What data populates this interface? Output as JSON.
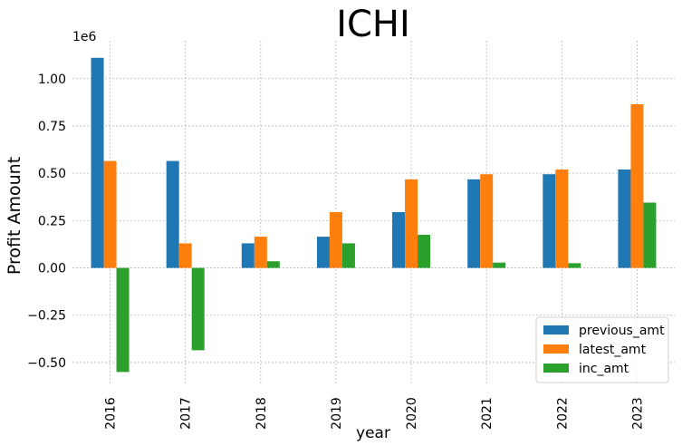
{
  "chart_data": {
    "type": "bar",
    "title": "ICHI",
    "xlabel": "year",
    "ylabel": "Profit Amount",
    "y_offset_label": "1e6",
    "categories": [
      "2016",
      "2017",
      "2018",
      "2019",
      "2020",
      "2021",
      "2022",
      "2023"
    ],
    "series": [
      {
        "name": "previous_amt",
        "color": "#1f77b4",
        "values": [
          1110000,
          565000,
          130000,
          165000,
          295000,
          468000,
          495000,
          520000
        ]
      },
      {
        "name": "latest_amt",
        "color": "#ff7f0e",
        "values": [
          565000,
          130000,
          165000,
          295000,
          468000,
          495000,
          520000,
          865000
        ]
      },
      {
        "name": "inc_amt",
        "color": "#2ca02c",
        "values": [
          -550000,
          -435000,
          35000,
          130000,
          175000,
          28000,
          25000,
          345000
        ]
      }
    ],
    "ylim": [
      -0.62,
      1.2
    ],
    "yticks": [
      1.0,
      0.75,
      0.5,
      0.25,
      0.0,
      -0.25,
      -0.5
    ],
    "ytick_labels": [
      "1.00",
      "0.75",
      "0.50",
      "0.25",
      "0.00",
      "−0.25",
      "−0.50"
    ],
    "grid": true,
    "legend_position": "bottom-right"
  }
}
